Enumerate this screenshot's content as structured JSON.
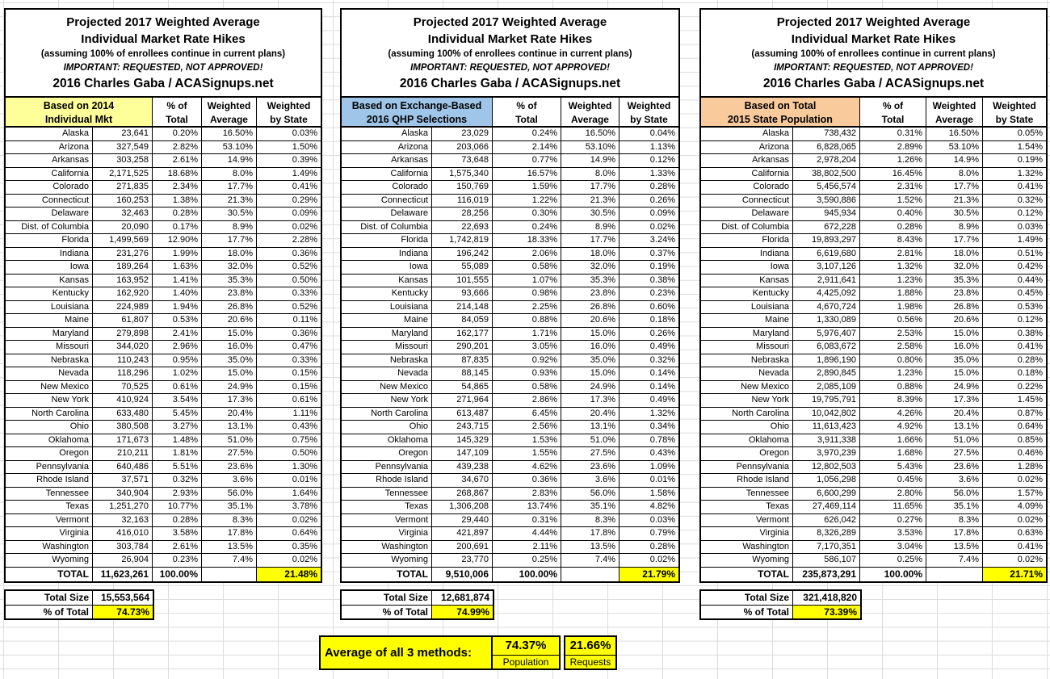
{
  "title": {
    "line1": "Projected 2017 Weighted Average",
    "line2": "Individual Market Rate Hikes",
    "line3": "(assuming 100% of enrollees continue in current plans)",
    "line4": "IMPORTANT: REQUESTED, NOT APPROVED!",
    "line5": "2016 Charles Gaba / ACASignups.net"
  },
  "column_headers": {
    "pct_total": "% of\nTotal",
    "weighted_average": "Weighted\nAverage",
    "weighted_by_state": "Weighted\nby State"
  },
  "colors": {
    "highlight_yellow": "#FFFF00",
    "table1_header": "#FFFF99",
    "table2_header": "#9FC5E8",
    "table3_header": "#F9CB9C",
    "border": "#000000",
    "gridline": "#DCDCDC"
  },
  "tables": [
    {
      "basis_line1": "Based on 2014",
      "basis_line2": "Individual Mkt",
      "header_color": "#FFFF99",
      "rows": [
        [
          "Alaska",
          "23,641",
          "0.20%",
          "16.50%",
          "0.03%"
        ],
        [
          "Arizona",
          "327,549",
          "2.82%",
          "53.10%",
          "1.50%"
        ],
        [
          "Arkansas",
          "303,258",
          "2.61%",
          "14.9%",
          "0.39%"
        ],
        [
          "California",
          "2,171,525",
          "18.68%",
          "8.0%",
          "1.49%"
        ],
        [
          "Colorado",
          "271,835",
          "2.34%",
          "17.7%",
          "0.41%"
        ],
        [
          "Connecticut",
          "160,253",
          "1.38%",
          "21.3%",
          "0.29%"
        ],
        [
          "Delaware",
          "32,463",
          "0.28%",
          "30.5%",
          "0.09%"
        ],
        [
          "Dist. of Columbia",
          "20,090",
          "0.17%",
          "8.9%",
          "0.02%"
        ],
        [
          "Florida",
          "1,499,569",
          "12.90%",
          "17.7%",
          "2.28%"
        ],
        [
          "Indiana",
          "231,276",
          "1.99%",
          "18.0%",
          "0.36%"
        ],
        [
          "Iowa",
          "189,264",
          "1.63%",
          "32.0%",
          "0.52%"
        ],
        [
          "Kansas",
          "163,952",
          "1.41%",
          "35.3%",
          "0.50%"
        ],
        [
          "Kentucky",
          "162,920",
          "1.40%",
          "23.8%",
          "0.33%"
        ],
        [
          "Louisiana",
          "224,989",
          "1.94%",
          "26.8%",
          "0.52%"
        ],
        [
          "Maine",
          "61,807",
          "0.53%",
          "20.6%",
          "0.11%"
        ],
        [
          "Maryland",
          "279,898",
          "2.41%",
          "15.0%",
          "0.36%"
        ],
        [
          "Missouri",
          "344,020",
          "2.96%",
          "16.0%",
          "0.47%"
        ],
        [
          "Nebraska",
          "110,243",
          "0.95%",
          "35.0%",
          "0.33%"
        ],
        [
          "Nevada",
          "118,296",
          "1.02%",
          "15.0%",
          "0.15%"
        ],
        [
          "New Mexico",
          "70,525",
          "0.61%",
          "24.9%",
          "0.15%"
        ],
        [
          "New York",
          "410,924",
          "3.54%",
          "17.3%",
          "0.61%"
        ],
        [
          "North Carolina",
          "633,480",
          "5.45%",
          "20.4%",
          "1.11%"
        ],
        [
          "Ohio",
          "380,508",
          "3.27%",
          "13.1%",
          "0.43%"
        ],
        [
          "Oklahoma",
          "171,673",
          "1.48%",
          "51.0%",
          "0.75%"
        ],
        [
          "Oregon",
          "210,211",
          "1.81%",
          "27.5%",
          "0.50%"
        ],
        [
          "Pennsylvania",
          "640,486",
          "5.51%",
          "23.6%",
          "1.30%"
        ],
        [
          "Rhode Island",
          "37,571",
          "0.32%",
          "3.6%",
          "0.01%"
        ],
        [
          "Tennessee",
          "340,904",
          "2.93%",
          "56.0%",
          "1.64%"
        ],
        [
          "Texas",
          "1,251,270",
          "10.77%",
          "35.1%",
          "3.78%"
        ],
        [
          "Vermont",
          "32,163",
          "0.28%",
          "8.3%",
          "0.02%"
        ],
        [
          "Virginia",
          "416,010",
          "3.58%",
          "17.8%",
          "0.64%"
        ],
        [
          "Washington",
          "303,784",
          "2.61%",
          "13.5%",
          "0.35%"
        ],
        [
          "Wyoming",
          "26,904",
          "0.23%",
          "7.4%",
          "0.02%"
        ]
      ],
      "total": {
        "label": "TOTAL",
        "value": "11,623,261",
        "pct": "100.00%",
        "weighted_average": "",
        "weighted_by_state": "21.48%"
      },
      "footer": {
        "size_label": "Total Size",
        "size_value": "15,553,564",
        "pct_label": "% of Total",
        "pct_value": "74.73%"
      }
    },
    {
      "basis_line1": "Based on Exchange-Based",
      "basis_line2": "2016 QHP Selections",
      "header_color": "#9FC5E8",
      "rows": [
        [
          "Alaska",
          "23,029",
          "0.24%",
          "16.50%",
          "0.04%"
        ],
        [
          "Arizona",
          "203,066",
          "2.14%",
          "53.10%",
          "1.13%"
        ],
        [
          "Arkansas",
          "73,648",
          "0.77%",
          "14.9%",
          "0.12%"
        ],
        [
          "California",
          "1,575,340",
          "16.57%",
          "8.0%",
          "1.33%"
        ],
        [
          "Colorado",
          "150,769",
          "1.59%",
          "17.7%",
          "0.28%"
        ],
        [
          "Connecticut",
          "116,019",
          "1.22%",
          "21.3%",
          "0.26%"
        ],
        [
          "Delaware",
          "28,256",
          "0.30%",
          "30.5%",
          "0.09%"
        ],
        [
          "Dist. of Columbia",
          "22,693",
          "0.24%",
          "8.9%",
          "0.02%"
        ],
        [
          "Florida",
          "1,742,819",
          "18.33%",
          "17.7%",
          "3.24%"
        ],
        [
          "Indiana",
          "196,242",
          "2.06%",
          "18.0%",
          "0.37%"
        ],
        [
          "Iowa",
          "55,089",
          "0.58%",
          "32.0%",
          "0.19%"
        ],
        [
          "Kansas",
          "101,555",
          "1.07%",
          "35.3%",
          "0.38%"
        ],
        [
          "Kentucky",
          "93,666",
          "0.98%",
          "23.8%",
          "0.23%"
        ],
        [
          "Louisiana",
          "214,148",
          "2.25%",
          "26.8%",
          "0.60%"
        ],
        [
          "Maine",
          "84,059",
          "0.88%",
          "20.6%",
          "0.18%"
        ],
        [
          "Maryland",
          "162,177",
          "1.71%",
          "15.0%",
          "0.26%"
        ],
        [
          "Missouri",
          "290,201",
          "3.05%",
          "16.0%",
          "0.49%"
        ],
        [
          "Nebraska",
          "87,835",
          "0.92%",
          "35.0%",
          "0.32%"
        ],
        [
          "Nevada",
          "88,145",
          "0.93%",
          "15.0%",
          "0.14%"
        ],
        [
          "New Mexico",
          "54,865",
          "0.58%",
          "24.9%",
          "0.14%"
        ],
        [
          "New York",
          "271,964",
          "2.86%",
          "17.3%",
          "0.49%"
        ],
        [
          "North Carolina",
          "613,487",
          "6.45%",
          "20.4%",
          "1.32%"
        ],
        [
          "Ohio",
          "243,715",
          "2.56%",
          "13.1%",
          "0.34%"
        ],
        [
          "Oklahoma",
          "145,329",
          "1.53%",
          "51.0%",
          "0.78%"
        ],
        [
          "Oregon",
          "147,109",
          "1.55%",
          "27.5%",
          "0.43%"
        ],
        [
          "Pennsylvania",
          "439,238",
          "4.62%",
          "23.6%",
          "1.09%"
        ],
        [
          "Rhode Island",
          "34,670",
          "0.36%",
          "3.6%",
          "0.01%"
        ],
        [
          "Tennessee",
          "268,867",
          "2.83%",
          "56.0%",
          "1.58%"
        ],
        [
          "Texas",
          "1,306,208",
          "13.74%",
          "35.1%",
          "4.82%"
        ],
        [
          "Vermont",
          "29,440",
          "0.31%",
          "8.3%",
          "0.03%"
        ],
        [
          "Virginia",
          "421,897",
          "4.44%",
          "17.8%",
          "0.79%"
        ],
        [
          "Washington",
          "200,691",
          "2.11%",
          "13.5%",
          "0.28%"
        ],
        [
          "Wyoming",
          "23,770",
          "0.25%",
          "7.4%",
          "0.02%"
        ]
      ],
      "total": {
        "label": "TOTAL",
        "value": "9,510,006",
        "pct": "100.00%",
        "weighted_average": "",
        "weighted_by_state": "21.79%"
      },
      "footer": {
        "size_label": "Total Size",
        "size_value": "12,681,874",
        "pct_label": "% of Total",
        "pct_value": "74.99%"
      }
    },
    {
      "basis_line1": "Based on Total",
      "basis_line2": "2015 State Population",
      "header_color": "#F9CB9C",
      "rows": [
        [
          "Alaska",
          "738,432",
          "0.31%",
          "16.50%",
          "0.05%"
        ],
        [
          "Arizona",
          "6,828,065",
          "2.89%",
          "53.10%",
          "1.54%"
        ],
        [
          "Arkansas",
          "2,978,204",
          "1.26%",
          "14.9%",
          "0.19%"
        ],
        [
          "California",
          "38,802,500",
          "16.45%",
          "8.0%",
          "1.32%"
        ],
        [
          "Colorado",
          "5,456,574",
          "2.31%",
          "17.7%",
          "0.41%"
        ],
        [
          "Connecticut",
          "3,590,886",
          "1.52%",
          "21.3%",
          "0.32%"
        ],
        [
          "Delaware",
          "945,934",
          "0.40%",
          "30.5%",
          "0.12%"
        ],
        [
          "Dist. of Columbia",
          "672,228",
          "0.28%",
          "8.9%",
          "0.03%"
        ],
        [
          "Florida",
          "19,893,297",
          "8.43%",
          "17.7%",
          "1.49%"
        ],
        [
          "Indiana",
          "6,619,680",
          "2.81%",
          "18.0%",
          "0.51%"
        ],
        [
          "Iowa",
          "3,107,126",
          "1.32%",
          "32.0%",
          "0.42%"
        ],
        [
          "Kansas",
          "2,911,641",
          "1.23%",
          "35.3%",
          "0.44%"
        ],
        [
          "Kentucky",
          "4,425,092",
          "1.88%",
          "23.8%",
          "0.45%"
        ],
        [
          "Louisiana",
          "4,670,724",
          "1.98%",
          "26.8%",
          "0.53%"
        ],
        [
          "Maine",
          "1,330,089",
          "0.56%",
          "20.6%",
          "0.12%"
        ],
        [
          "Maryland",
          "5,976,407",
          "2.53%",
          "15.0%",
          "0.38%"
        ],
        [
          "Missouri",
          "6,083,672",
          "2.58%",
          "16.0%",
          "0.41%"
        ],
        [
          "Nebraska",
          "1,896,190",
          "0.80%",
          "35.0%",
          "0.28%"
        ],
        [
          "Nevada",
          "2,890,845",
          "1.23%",
          "15.0%",
          "0.18%"
        ],
        [
          "New Mexico",
          "2,085,109",
          "0.88%",
          "24.9%",
          "0.22%"
        ],
        [
          "New York",
          "19,795,791",
          "8.39%",
          "17.3%",
          "1.45%"
        ],
        [
          "North Carolina",
          "10,042,802",
          "4.26%",
          "20.4%",
          "0.87%"
        ],
        [
          "Ohio",
          "11,613,423",
          "4.92%",
          "13.1%",
          "0.64%"
        ],
        [
          "Oklahoma",
          "3,911,338",
          "1.66%",
          "51.0%",
          "0.85%"
        ],
        [
          "Oregon",
          "3,970,239",
          "1.68%",
          "27.5%",
          "0.46%"
        ],
        [
          "Pennsylvania",
          "12,802,503",
          "5.43%",
          "23.6%",
          "1.28%"
        ],
        [
          "Rhode Island",
          "1,056,298",
          "0.45%",
          "3.6%",
          "0.02%"
        ],
        [
          "Tennessee",
          "6,600,299",
          "2.80%",
          "56.0%",
          "1.57%"
        ],
        [
          "Texas",
          "27,469,114",
          "11.65%",
          "35.1%",
          "4.09%"
        ],
        [
          "Vermont",
          "626,042",
          "0.27%",
          "8.3%",
          "0.02%"
        ],
        [
          "Virginia",
          "8,326,289",
          "3.53%",
          "17.8%",
          "0.63%"
        ],
        [
          "Washington",
          "7,170,351",
          "3.04%",
          "13.5%",
          "0.41%"
        ],
        [
          "Wyoming",
          "586,107",
          "0.25%",
          "7.4%",
          "0.02%"
        ]
      ],
      "total": {
        "label": "TOTAL",
        "value": "235,873,291",
        "pct": "100.00%",
        "weighted_average": "",
        "weighted_by_state": "21.71%"
      },
      "footer": {
        "size_label": "Total Size",
        "size_value": "321,418,820",
        "pct_label": "% of Total",
        "pct_value": "73.39%"
      }
    }
  ],
  "summary": {
    "label": "Average of all 3 methods:",
    "population_value": "74.37%",
    "population_label": "Population",
    "requests_value": "21.66%",
    "requests_label": "Requests"
  }
}
